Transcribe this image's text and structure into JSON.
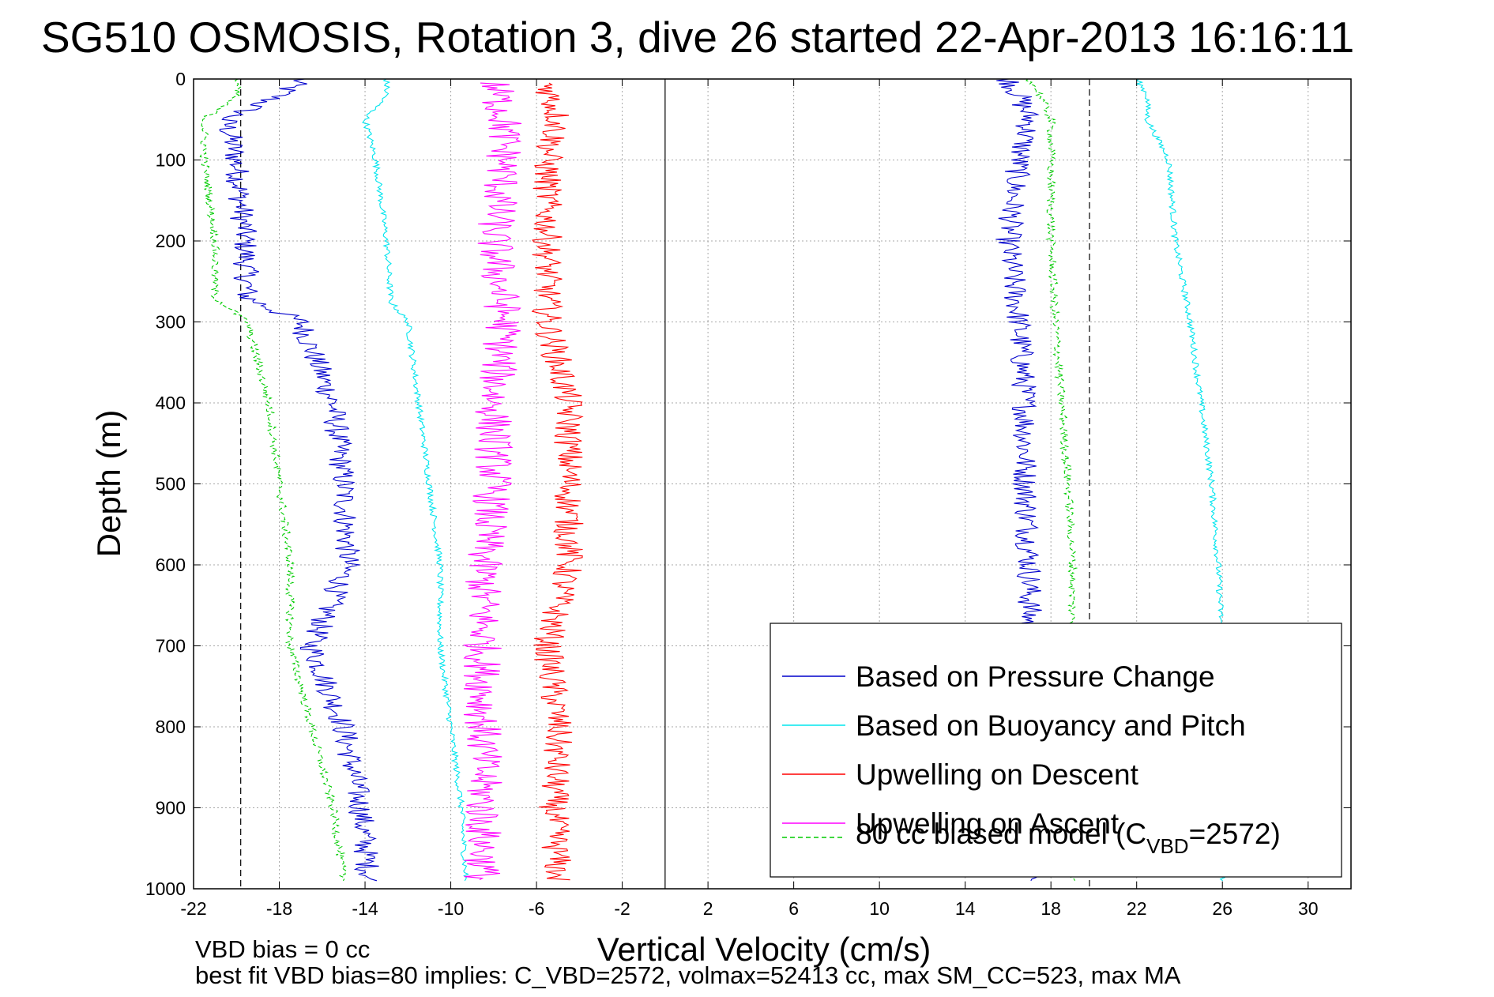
{
  "chart_data": {
    "type": "line",
    "title": "SG510 OSMOSIS, Rotation 3, dive 26 started 22-Apr-2013 16:16:11",
    "xlabel": "Vertical Velocity (cm/s)",
    "ylabel": "Depth (m)",
    "xlim": [
      -22,
      32
    ],
    "ylim": [
      0,
      1000
    ],
    "y_reversed": true,
    "grid": true,
    "legend_position": "lower-right",
    "x_ticks": [
      "-22",
      "-18",
      "-14",
      "-10",
      "-6",
      "-2",
      "2",
      "6",
      "10",
      "14",
      "18",
      "22",
      "26",
      "30"
    ],
    "y_ticks": [
      "0",
      "100",
      "200",
      "300",
      "400",
      "500",
      "600",
      "700",
      "800",
      "900",
      "1000"
    ],
    "reference_lines": [
      {
        "x": -19.8,
        "style": "dashed"
      },
      {
        "x": 0,
        "style": "solid"
      },
      {
        "x": 19.8,
        "style": "dashed"
      }
    ],
    "series": [
      {
        "name": "Based on Pressure Change",
        "color": "#0000cc",
        "style": "solid",
        "noise": 0.6,
        "descent": {
          "depth": [
            0,
            20,
            50,
            100,
            200,
            270,
            300,
            400,
            500,
            600,
            700,
            800,
            900,
            990
          ],
          "value": [
            -17,
            -18,
            -20.5,
            -20,
            -19.6,
            -19.5,
            -17,
            -15.5,
            -15,
            -14.8,
            -16.5,
            -15,
            -14.2,
            -13.8
          ]
        },
        "ascent": {
          "depth": [
            0,
            20,
            50,
            100,
            200,
            300,
            400,
            500,
            600,
            700,
            800,
            900,
            990
          ],
          "value": [
            16,
            16.5,
            17,
            16.5,
            16,
            16.5,
            16.8,
            16.8,
            17,
            17,
            17,
            17,
            17
          ]
        }
      },
      {
        "name": "Based on Buoyancy and Pitch",
        "color": "#00e5ee",
        "style": "solid",
        "noise": 0.15,
        "descent": {
          "depth": [
            0,
            20,
            50,
            100,
            200,
            275,
            300,
            400,
            500,
            600,
            700,
            800,
            900,
            990
          ],
          "value": [
            -13,
            -13,
            -14,
            -13.5,
            -13,
            -12.8,
            -12,
            -11.5,
            -11,
            -10.5,
            -10.5,
            -10,
            -9.5,
            -9.3
          ]
        },
        "ascent": {
          "depth": [
            0,
            20,
            50,
            100,
            200,
            300,
            400,
            500,
            600,
            700,
            800,
            900,
            990
          ],
          "value": [
            22,
            22.5,
            22.5,
            23.5,
            23.8,
            24.5,
            25,
            25.5,
            25.8,
            26,
            26,
            26,
            26
          ]
        }
      },
      {
        "name": "Upwelling on Descent",
        "color": "#ff0000",
        "style": "solid",
        "noise": 0.7,
        "descent": {
          "depth": [
            5,
            50,
            100,
            200,
            300,
            400,
            500,
            600,
            700,
            800,
            900,
            990
          ],
          "value": [
            -5.5,
            -5,
            -5.5,
            -5.5,
            -5.5,
            -4.5,
            -4.5,
            -4.5,
            -5.5,
            -5,
            -5.2,
            -5
          ]
        }
      },
      {
        "name": "Upwelling on Ascent",
        "color": "#ff00ff",
        "style": "solid",
        "noise": 0.9,
        "descent": {
          "depth": [
            5,
            50,
            100,
            200,
            300,
            400,
            500,
            600,
            700,
            800,
            900,
            990
          ],
          "value": [
            -8,
            -7.5,
            -7.5,
            -8,
            -7.5,
            -8,
            -8,
            -8.5,
            -8.5,
            -8.5,
            -8.5,
            -8.5
          ]
        }
      },
      {
        "name": "80 cc biased model (C_VBD=2572)",
        "color": "#00cc00",
        "style": "dashed",
        "noise": 0.2,
        "descent": {
          "depth": [
            0,
            20,
            50,
            100,
            200,
            270,
            300,
            400,
            500,
            600,
            700,
            800,
            900,
            990
          ],
          "value": [
            -20,
            -20,
            -21.5,
            -21.5,
            -21,
            -21,
            -19.5,
            -18.5,
            -18,
            -17.5,
            -17.5,
            -16.5,
            -15.5,
            -15
          ]
        },
        "ascent": {
          "depth": [
            0,
            20,
            50,
            100,
            200,
            300,
            400,
            500,
            600,
            700,
            800,
            900,
            990
          ],
          "value": [
            17,
            17.5,
            18,
            18,
            18,
            18.2,
            18.5,
            18.8,
            19,
            19,
            19,
            19,
            19
          ]
        }
      }
    ]
  },
  "legend": {
    "items": [
      {
        "label": "Based on Pressure Change",
        "color": "#0000cc",
        "dashed": false
      },
      {
        "label": "Based on Buoyancy and Pitch",
        "color": "#00e5ee",
        "dashed": false
      },
      {
        "label": "Upwelling on Descent",
        "color": "#ff0000",
        "dashed": false
      },
      {
        "label": "Upwelling on Ascent",
        "color": "#ff00ff",
        "dashed": false
      }
    ],
    "model_item": {
      "prefix": "80 cc biased model (C",
      "subscript": "VBD",
      "suffix": "=2572)",
      "color": "#00cc00"
    }
  },
  "footer": {
    "line1": "VBD bias = 0 cc",
    "line2": "best fit VBD bias=80 implies: C_VBD=2572, volmax=52413 cc, max SM_CC=523, max MA"
  }
}
